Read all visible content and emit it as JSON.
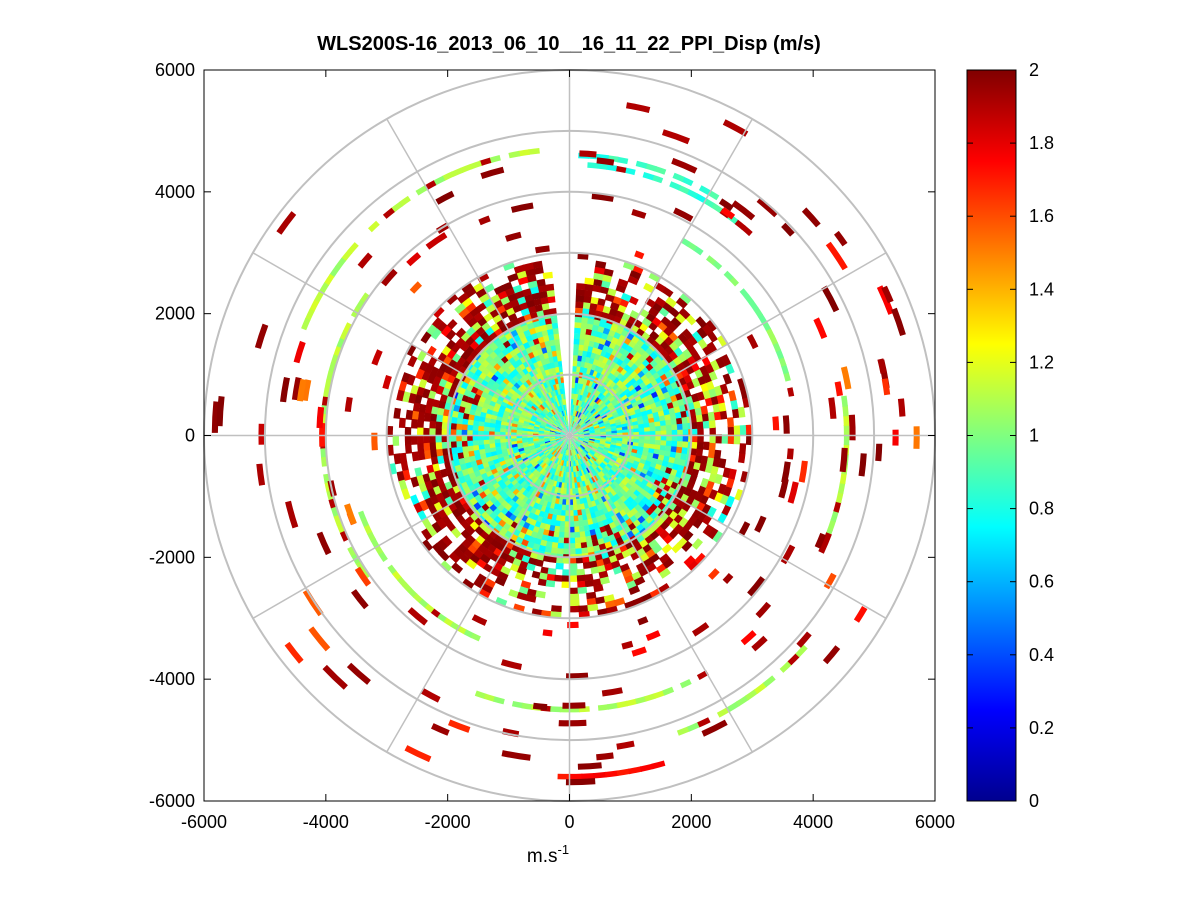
{
  "chart_data": {
    "type": "heatmap",
    "subtype": "polar-ppi",
    "title": "WLS200S-16_2013_06_10__16_11_22_PPI_Disp (m/s)",
    "xlabel_base": "m.s",
    "xlabel_exp": "-1",
    "ylabel": "",
    "xlim": [
      -6000,
      6000
    ],
    "ylim": [
      -6000,
      6000
    ],
    "xticks": [
      -6000,
      -4000,
      -2000,
      0,
      2000,
      4000,
      6000
    ],
    "yticks": [
      -6000,
      -4000,
      -2000,
      0,
      2000,
      4000,
      6000
    ],
    "xtick_labels": [
      "-6000",
      "-4000",
      "-2000",
      "0",
      "2000",
      "4000",
      "6000"
    ],
    "ytick_labels": [
      "-6000",
      "-4000",
      "-2000",
      "0",
      "2000",
      "4000",
      "6000"
    ],
    "polar_grid": {
      "rings": [
        1000,
        2000,
        3000,
        4000,
        5000,
        6000
      ],
      "spokes_deg": [
        0,
        30,
        60,
        90,
        120,
        150,
        180,
        210,
        240,
        270,
        300,
        330
      ]
    },
    "colorbar": {
      "colormap": "jet",
      "clim": [
        0,
        2
      ],
      "ticks": [
        0,
        0.2,
        0.4,
        0.6,
        0.8,
        1,
        1.2,
        1.4,
        1.6,
        1.8,
        2
      ],
      "tick_labels": [
        "0",
        "0.2",
        "0.4",
        "0.6",
        "0.8",
        "1",
        "1.2",
        "1.4",
        "1.6",
        "1.8",
        "2"
      ]
    },
    "data_description": {
      "units": "m/s",
      "range_max": 6000,
      "core_radius_m": 2000,
      "core_value_mean": 0.95,
      "gap_sector_deg": [
        86,
        96
      ],
      "arcs": [
        {
          "r": 4700,
          "from_deg": 96,
          "to_deg": 158,
          "value": 1.1
        },
        {
          "r": 4600,
          "from_deg": 58,
          "to_deg": 88,
          "value": 0.85
        },
        {
          "r": 4450,
          "from_deg": 48,
          "to_deg": 86,
          "value": 0.85
        },
        {
          "r": 4050,
          "from_deg": 145,
          "to_deg": 215,
          "value": 1.1
        },
        {
          "r": 4500,
          "from_deg": 250,
          "to_deg": 300,
          "value": 1.1
        },
        {
          "r": 5200,
          "from_deg": 290,
          "to_deg": 318,
          "value": 1.1
        },
        {
          "r": 4550,
          "from_deg": -22,
          "to_deg": 10,
          "value": 1.1
        },
        {
          "r": 3700,
          "from_deg": 10,
          "to_deg": 60,
          "value": 1.0
        },
        {
          "r": 5600,
          "from_deg": 268,
          "to_deg": 285,
          "value": 1.7
        },
        {
          "r": 3650,
          "from_deg": 200,
          "to_deg": 245,
          "value": 1.1
        }
      ]
    }
  }
}
